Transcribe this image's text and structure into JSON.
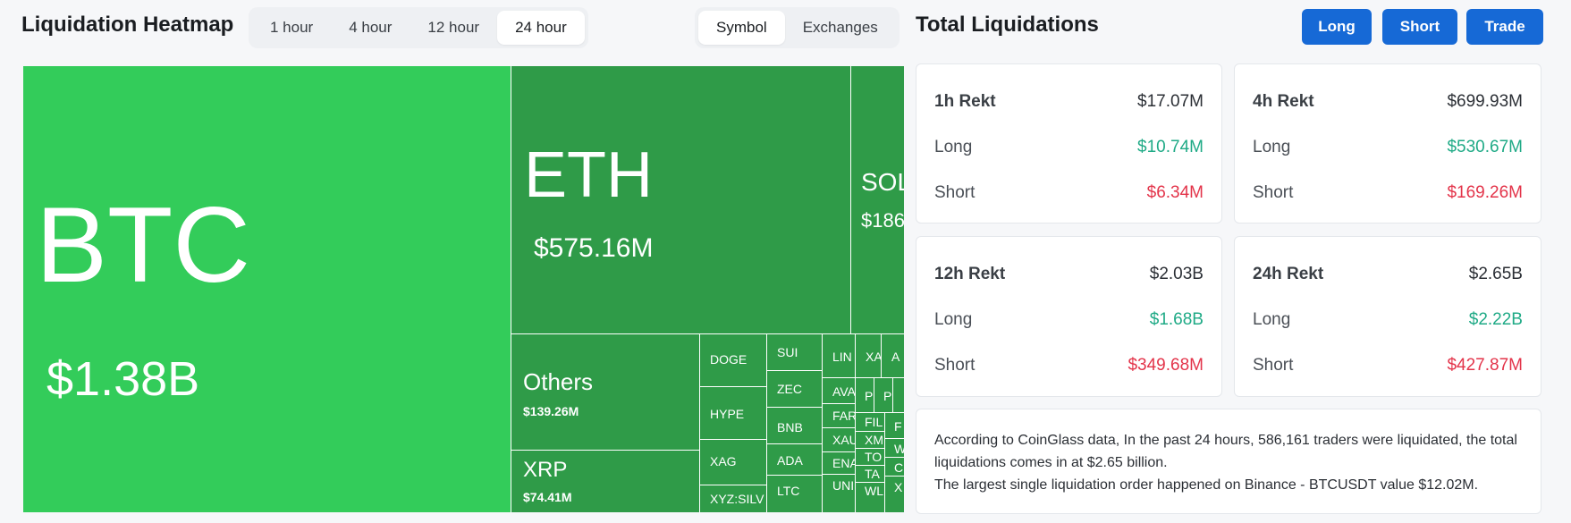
{
  "heatmap": {
    "title": "Liquidation Heatmap",
    "time_options": [
      "1 hour",
      "4 hour",
      "12 hour",
      "24 hour"
    ],
    "active_time": "24 hour",
    "view_options": [
      "Symbol",
      "Exchanges"
    ],
    "active_view": "Symbol"
  },
  "treemap": {
    "btc": {
      "symbol": "BTC",
      "value": "$1.38B"
    },
    "eth": {
      "symbol": "ETH",
      "value": "$575.16M"
    },
    "sol": {
      "symbol": "SOL",
      "value": "$186"
    },
    "others": {
      "symbol": "Others",
      "value": "$139.26M"
    },
    "xrp": {
      "symbol": "XRP",
      "value": "$74.41M"
    },
    "small": [
      "DOGE",
      "HYPE",
      "XAG",
      "XYZ:SILV",
      "SUI",
      "ZEC",
      "BNB",
      "ADA",
      "LTC",
      "LIN",
      "XA",
      "A",
      "AVA",
      "FAR",
      "XAU",
      "ENA",
      "UNI",
      "P",
      "P",
      "FIL",
      "XM",
      "TO",
      "TA",
      "WL",
      "F",
      "W",
      "C",
      "X"
    ]
  },
  "totals": {
    "title": "Total Liquidations",
    "buttons": {
      "long": "Long",
      "short": "Short",
      "trade": "Trade"
    },
    "cards": [
      {
        "label": "1h Rekt",
        "total": "$17.07M",
        "long_label": "Long",
        "long": "$10.74M",
        "short_label": "Short",
        "short": "$6.34M"
      },
      {
        "label": "4h Rekt",
        "total": "$699.93M",
        "long_label": "Long",
        "long": "$530.67M",
        "short_label": "Short",
        "short": "$169.26M"
      },
      {
        "label": "12h Rekt",
        "total": "$2.03B",
        "long_label": "Long",
        "long": "$1.68B",
        "short_label": "Short",
        "short": "$349.68M"
      },
      {
        "label": "24h Rekt",
        "total": "$2.65B",
        "long_label": "Long",
        "long": "$2.22B",
        "short_label": "Short",
        "short": "$427.87M"
      }
    ],
    "summary_line1": "According to CoinGlass data, In the past 24 hours, 586,161 traders were liquidated, the total liquidations comes in at $2.65 billion.",
    "summary_line2": "The largest single liquidation order happened on Binance - BTCUSDT value $12.02M."
  }
}
